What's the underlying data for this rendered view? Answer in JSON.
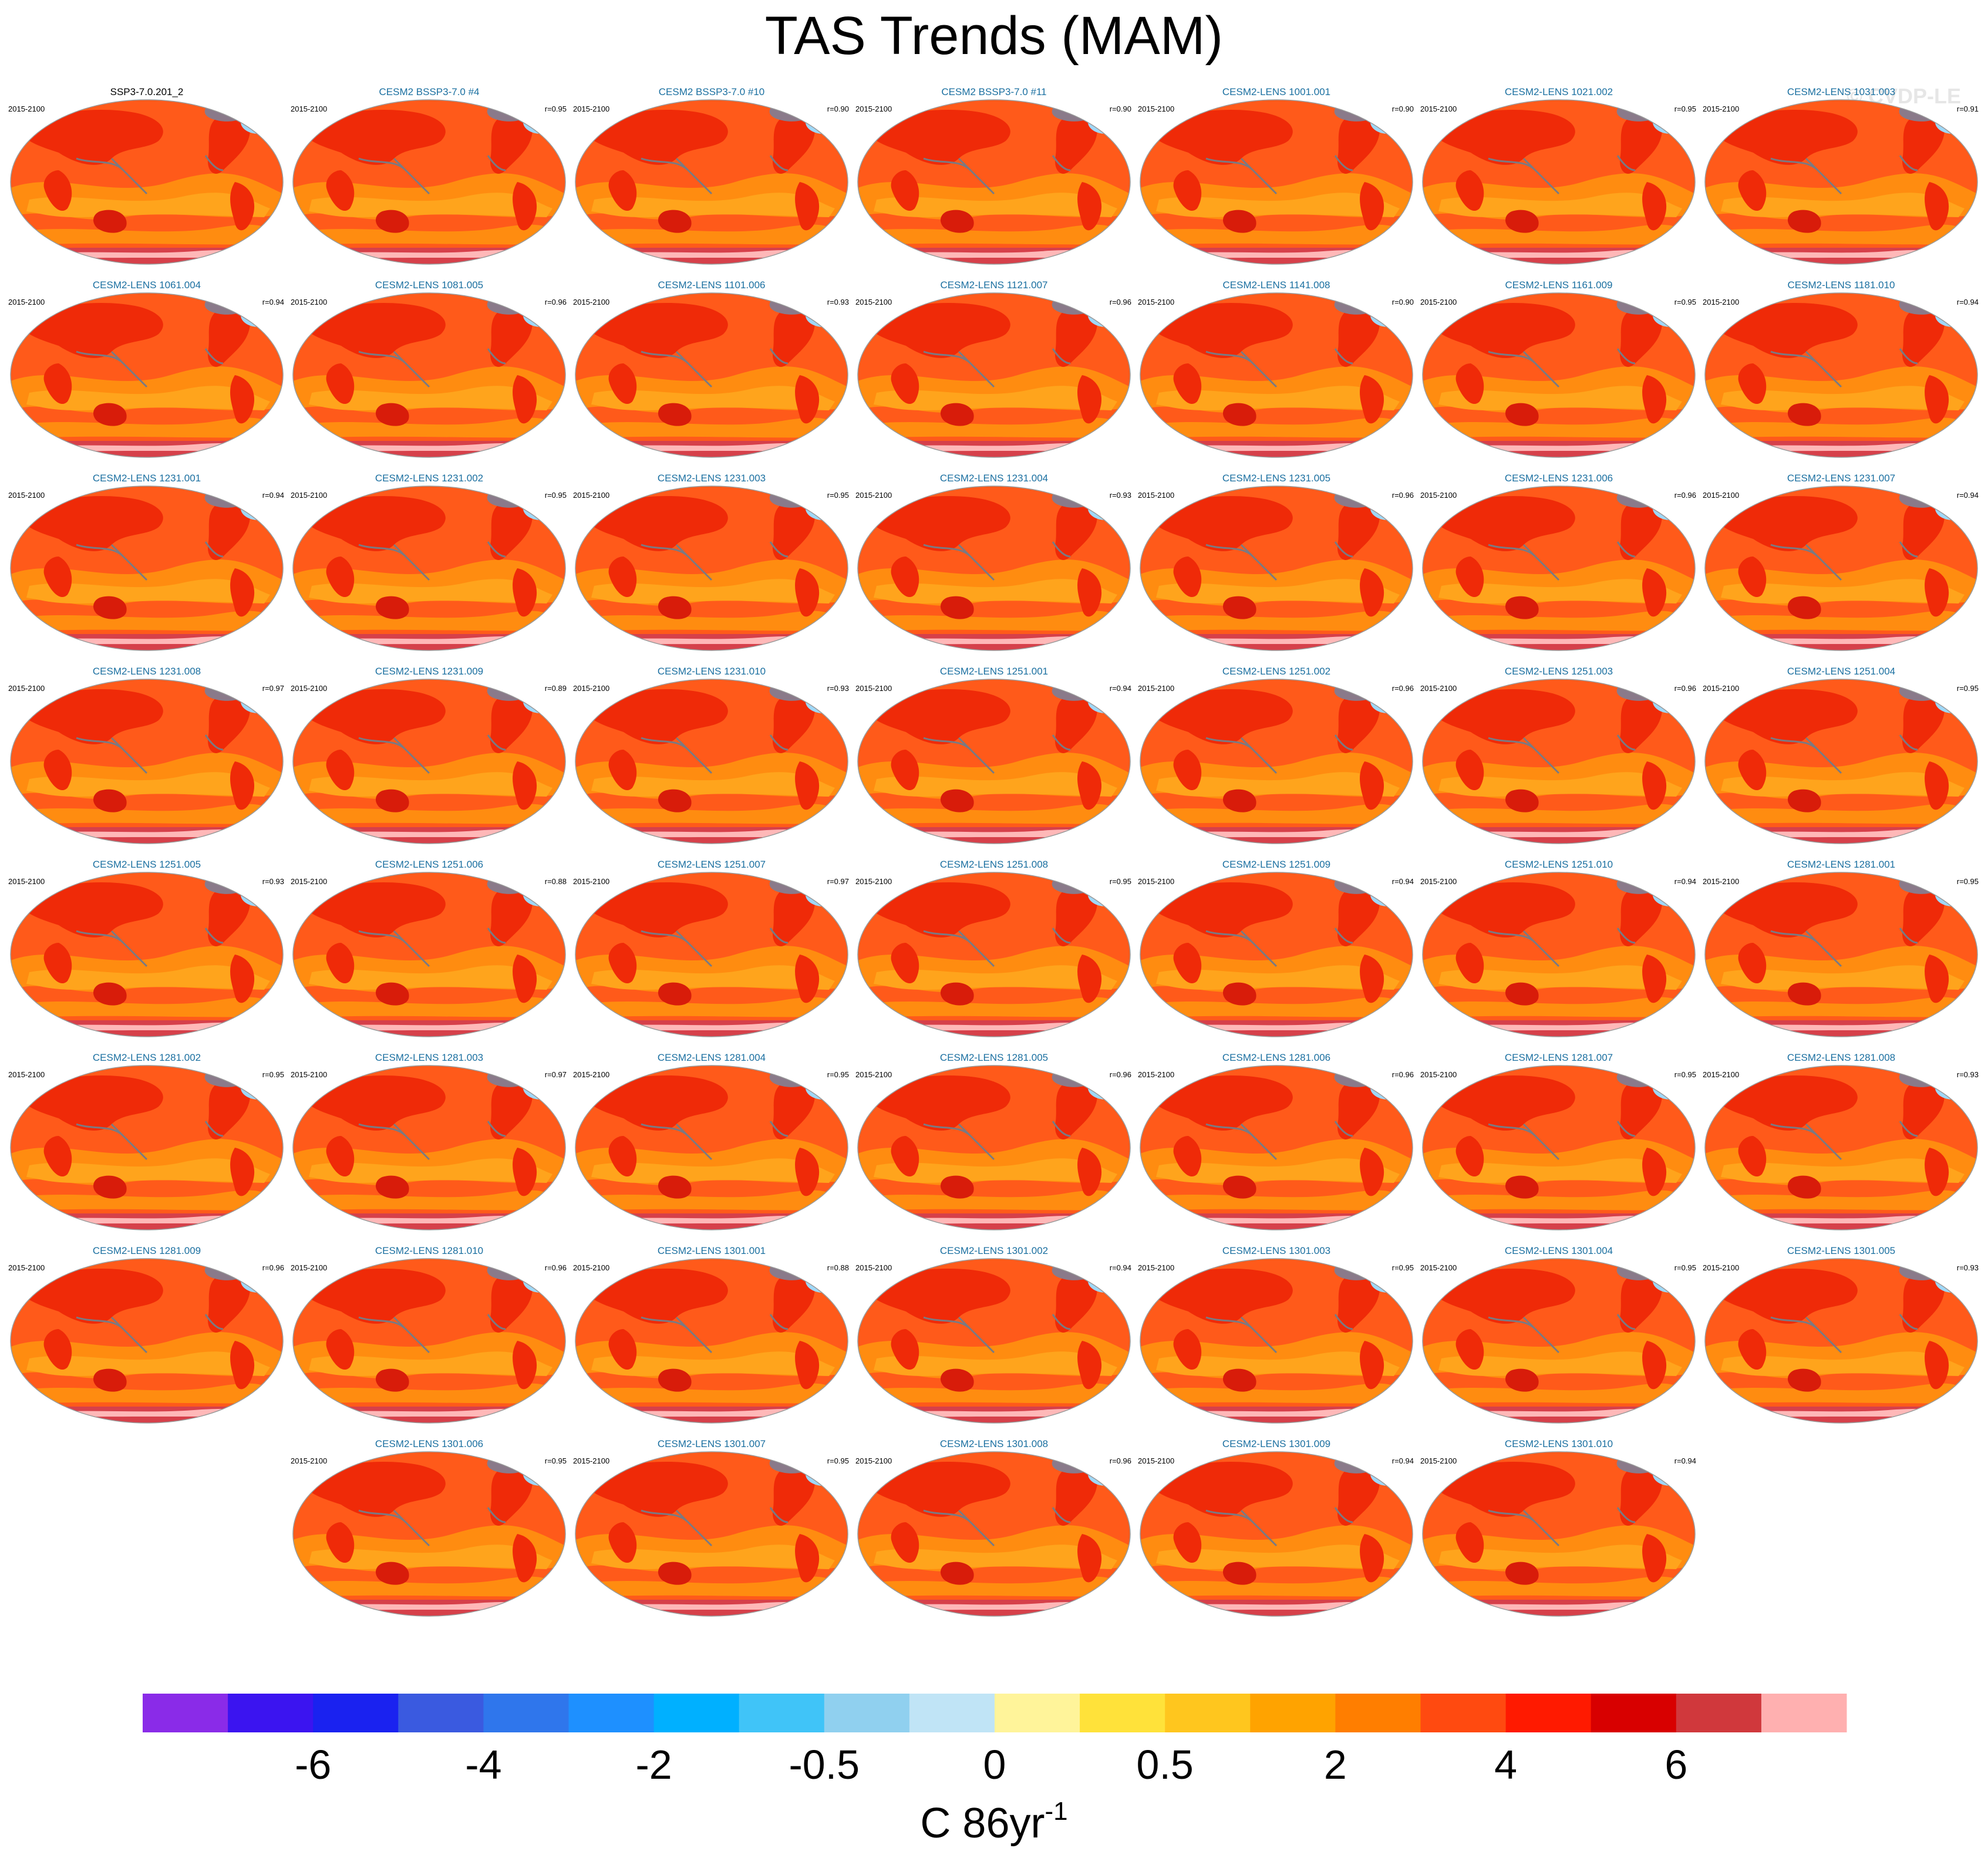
{
  "title": "TAS Trends (MAM)",
  "watermark": "© CVDP-LE",
  "colorbar_units_base": "C 86yr",
  "colorbar_units_exp": "-1",
  "chart_data": {
    "type": "map-panels",
    "variable": "TAS",
    "season": "MAM",
    "layout": {
      "rows": 8,
      "cols": 7,
      "last_row_offset_cols": 1
    },
    "panels": [
      {
        "name": "SSP3-7.0.201_2",
        "period": "2015-2100",
        "r": ""
      },
      {
        "name": "CESM2 BSSP3-7.0 #4",
        "period": "2015-2100",
        "r": "r=0.95"
      },
      {
        "name": "CESM2 BSSP3-7.0 #10",
        "period": "2015-2100",
        "r": "r=0.90"
      },
      {
        "name": "CESM2 BSSP3-7.0 #11",
        "period": "2015-2100",
        "r": "r=0.90"
      },
      {
        "name": "CESM2-LENS 1001.001",
        "period": "2015-2100",
        "r": "r=0.90"
      },
      {
        "name": "CESM2-LENS 1021.002",
        "period": "2015-2100",
        "r": "r=0.95"
      },
      {
        "name": "CESM2-LENS 1031.003",
        "period": "2015-2100",
        "r": "r=0.91"
      },
      {
        "name": "CESM2-LENS 1061.004",
        "period": "2015-2100",
        "r": "r=0.94"
      },
      {
        "name": "CESM2-LENS 1081.005",
        "period": "2015-2100",
        "r": "r=0.96"
      },
      {
        "name": "CESM2-LENS 1101.006",
        "period": "2015-2100",
        "r": "r=0.93"
      },
      {
        "name": "CESM2-LENS 1121.007",
        "period": "2015-2100",
        "r": "r=0.96"
      },
      {
        "name": "CESM2-LENS 1141.008",
        "period": "2015-2100",
        "r": "r=0.90"
      },
      {
        "name": "CESM2-LENS 1161.009",
        "period": "2015-2100",
        "r": "r=0.95"
      },
      {
        "name": "CESM2-LENS 1181.010",
        "period": "2015-2100",
        "r": "r=0.94"
      },
      {
        "name": "CESM2-LENS 1231.001",
        "period": "2015-2100",
        "r": "r=0.94"
      },
      {
        "name": "CESM2-LENS 1231.002",
        "period": "2015-2100",
        "r": "r=0.95"
      },
      {
        "name": "CESM2-LENS 1231.003",
        "period": "2015-2100",
        "r": "r=0.95"
      },
      {
        "name": "CESM2-LENS 1231.004",
        "period": "2015-2100",
        "r": "r=0.93"
      },
      {
        "name": "CESM2-LENS 1231.005",
        "period": "2015-2100",
        "r": "r=0.96"
      },
      {
        "name": "CESM2-LENS 1231.006",
        "period": "2015-2100",
        "r": "r=0.96"
      },
      {
        "name": "CESM2-LENS 1231.007",
        "period": "2015-2100",
        "r": "r=0.94"
      },
      {
        "name": "CESM2-LENS 1231.008",
        "period": "2015-2100",
        "r": "r=0.97"
      },
      {
        "name": "CESM2-LENS 1231.009",
        "period": "2015-2100",
        "r": "r=0.89"
      },
      {
        "name": "CESM2-LENS 1231.010",
        "period": "2015-2100",
        "r": "r=0.93"
      },
      {
        "name": "CESM2-LENS 1251.001",
        "period": "2015-2100",
        "r": "r=0.94"
      },
      {
        "name": "CESM2-LENS 1251.002",
        "period": "2015-2100",
        "r": "r=0.96"
      },
      {
        "name": "CESM2-LENS 1251.003",
        "period": "2015-2100",
        "r": "r=0.96"
      },
      {
        "name": "CESM2-LENS 1251.004",
        "period": "2015-2100",
        "r": "r=0.95"
      },
      {
        "name": "CESM2-LENS 1251.005",
        "period": "2015-2100",
        "r": "r=0.93"
      },
      {
        "name": "CESM2-LENS 1251.006",
        "period": "2015-2100",
        "r": "r=0.88"
      },
      {
        "name": "CESM2-LENS 1251.007",
        "period": "2015-2100",
        "r": "r=0.97"
      },
      {
        "name": "CESM2-LENS 1251.008",
        "period": "2015-2100",
        "r": "r=0.95"
      },
      {
        "name": "CESM2-LENS 1251.009",
        "period": "2015-2100",
        "r": "r=0.94"
      },
      {
        "name": "CESM2-LENS 1251.010",
        "period": "2015-2100",
        "r": "r=0.94"
      },
      {
        "name": "CESM2-LENS 1281.001",
        "period": "2015-2100",
        "r": "r=0.95"
      },
      {
        "name": "CESM2-LENS 1281.002",
        "period": "2015-2100",
        "r": "r=0.95"
      },
      {
        "name": "CESM2-LENS 1281.003",
        "period": "2015-2100",
        "r": "r=0.97"
      },
      {
        "name": "CESM2-LENS 1281.004",
        "period": "2015-2100",
        "r": "r=0.95"
      },
      {
        "name": "CESM2-LENS 1281.005",
        "period": "2015-2100",
        "r": "r=0.96"
      },
      {
        "name": "CESM2-LENS 1281.006",
        "period": "2015-2100",
        "r": "r=0.96"
      },
      {
        "name": "CESM2-LENS 1281.007",
        "period": "2015-2100",
        "r": "r=0.95"
      },
      {
        "name": "CESM2-LENS 1281.008",
        "period": "2015-2100",
        "r": "r=0.93"
      },
      {
        "name": "CESM2-LENS 1281.009",
        "period": "2015-2100",
        "r": "r=0.96"
      },
      {
        "name": "CESM2-LENS 1281.010",
        "period": "2015-2100",
        "r": "r=0.96"
      },
      {
        "name": "CESM2-LENS 1301.001",
        "period": "2015-2100",
        "r": "r=0.88"
      },
      {
        "name": "CESM2-LENS 1301.002",
        "period": "2015-2100",
        "r": "r=0.94"
      },
      {
        "name": "CESM2-LENS 1301.003",
        "period": "2015-2100",
        "r": "r=0.95"
      },
      {
        "name": "CESM2-LENS 1301.004",
        "period": "2015-2100",
        "r": "r=0.95"
      },
      {
        "name": "CESM2-LENS 1301.005",
        "period": "2015-2100",
        "r": "r=0.93"
      },
      {
        "name": "CESM2-LENS 1301.006",
        "period": "2015-2100",
        "r": "r=0.95"
      },
      {
        "name": "CESM2-LENS 1301.007",
        "period": "2015-2100",
        "r": "r=0.95"
      },
      {
        "name": "CESM2-LENS 1301.008",
        "period": "2015-2100",
        "r": "r=0.96"
      },
      {
        "name": "CESM2-LENS 1301.009",
        "period": "2015-2100",
        "r": "r=0.94"
      },
      {
        "name": "CESM2-LENS 1301.010",
        "period": "2015-2100",
        "r": "r=0.94"
      }
    ],
    "colorbar": {
      "colors": [
        "#8a2be8",
        "#3b14f0",
        "#1a22f0",
        "#3a5ae0",
        "#2f76ec",
        "#1e90ff",
        "#00b0ff",
        "#40c4f8",
        "#90d0ef",
        "#c0e4f6",
        "#fff49a",
        "#ffe23a",
        "#ffc61e",
        "#ffa300",
        "#ff7e00",
        "#ff4a10",
        "#ff1a00",
        "#d80000",
        "#d0383c",
        "#ffb0b0"
      ],
      "tick_labels": [
        "-6",
        "-4",
        "-2",
        "-0.5",
        "0",
        "0.5",
        "2",
        "4",
        "6"
      ],
      "tick_boundaries": [
        2,
        4,
        6,
        8,
        10,
        12,
        14,
        16,
        18
      ]
    },
    "map_colors": {
      "base": "#ff5a1a",
      "ocean_low": "#ff8c10",
      "tropical_band": "#ffa41c",
      "land_high": "#ef2a08",
      "land_darker": "#d81c0a",
      "ice_edge": "#d6404a",
      "cold_core": "#2f8cf0",
      "cold_edge": "#9fd8f8",
      "greenland": "#8a7a8a",
      "coast": "#7a7a82"
    }
  }
}
